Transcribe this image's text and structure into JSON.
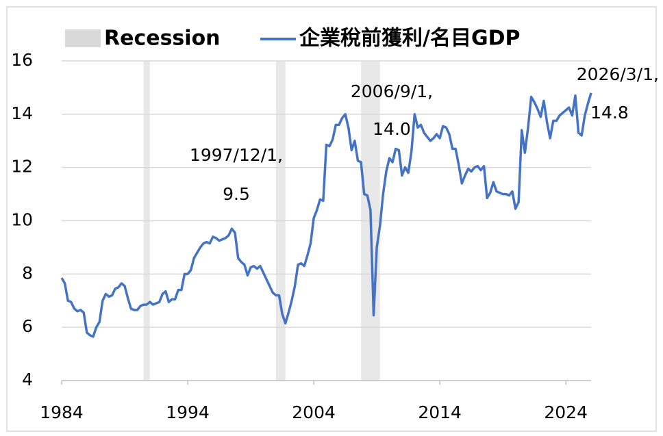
{
  "chart_data": {
    "type": "line",
    "recession": {
      "name": "Recession",
      "color": "#d9d9d9",
      "periods": [
        [
          1990.5,
          1991.0
        ],
        [
          2001.0,
          2001.75
        ],
        [
          2007.75,
          2009.25
        ]
      ]
    },
    "x": [
      1984,
      1984.25,
      1984.5,
      1984.75,
      1985,
      1985.25,
      1985.5,
      1985.75,
      1986,
      1986.25,
      1986.5,
      1986.75,
      1987,
      1987.25,
      1987.5,
      1987.75,
      1988,
      1988.25,
      1988.5,
      1988.75,
      1989,
      1989.25,
      1989.5,
      1989.75,
      1990,
      1990.25,
      1990.5,
      1990.75,
      1991,
      1991.25,
      1991.5,
      1991.75,
      1992,
      1992.25,
      1992.5,
      1992.75,
      1993,
      1993.25,
      1993.5,
      1993.75,
      1994,
      1994.25,
      1994.5,
      1994.75,
      1995,
      1995.25,
      1995.5,
      1995.75,
      1996,
      1996.25,
      1996.5,
      1996.75,
      1997,
      1997.25,
      1997.5,
      1997.75,
      1998,
      1998.25,
      1998.5,
      1998.75,
      1999,
      1999.25,
      1999.5,
      1999.75,
      2000,
      2000.25,
      2000.5,
      2000.75,
      2001,
      2001.25,
      2001.5,
      2001.75,
      2002,
      2002.25,
      2002.5,
      2002.75,
      2003,
      2003.25,
      2003.5,
      2003.75,
      2004,
      2004.25,
      2004.5,
      2004.75,
      2005,
      2005.25,
      2005.5,
      2005.75,
      2006,
      2006.25,
      2006.5,
      2006.75,
      2007,
      2007.25,
      2007.5,
      2007.75,
      2008,
      2008.25,
      2008.5,
      2008.75,
      2009,
      2009.25,
      2009.5,
      2009.75,
      2010,
      2010.25,
      2010.5,
      2010.75,
      2011,
      2011.25,
      2011.5,
      2011.75,
      2012,
      2012.25,
      2012.5,
      2012.75,
      2013,
      2013.25,
      2013.5,
      2013.75,
      2014,
      2014.25,
      2014.5,
      2014.75,
      2015,
      2015.25,
      2015.5,
      2015.75,
      2016,
      2016.25,
      2016.5,
      2016.75,
      2017,
      2017.25,
      2017.5,
      2017.75,
      2018,
      2018.25,
      2018.5,
      2018.75,
      2019,
      2019.25,
      2019.5,
      2019.75,
      2020,
      2020.25,
      2020.5,
      2020.75,
      2021,
      2021.25,
      2021.5,
      2021.75,
      2022,
      2022.25,
      2022.5,
      2022.75,
      2023,
      2023.25,
      2023.5,
      2023.75,
      2024,
      2024.25,
      2024.5,
      2024.75,
      2025,
      2025.25,
      2025.5,
      2025.75,
      2026
    ],
    "series": [
      {
        "name": "企業稅前獲利/名目GDP",
        "color": "#4472c4",
        "values": [
          7.85,
          7.65,
          7.0,
          6.95,
          6.7,
          6.6,
          6.65,
          6.55,
          5.8,
          5.7,
          5.65,
          6.0,
          6.2,
          7.0,
          7.25,
          7.15,
          7.2,
          7.45,
          7.5,
          7.65,
          7.55,
          7.1,
          6.7,
          6.65,
          6.65,
          6.8,
          6.85,
          6.85,
          6.95,
          6.85,
          6.9,
          6.95,
          7.25,
          7.35,
          6.95,
          7.05,
          7.05,
          7.4,
          7.4,
          8.0,
          8.0,
          8.15,
          8.6,
          8.8,
          9.0,
          9.15,
          9.2,
          9.15,
          9.4,
          9.35,
          9.25,
          9.3,
          9.35,
          9.45,
          9.7,
          9.55,
          8.6,
          8.45,
          8.35,
          7.95,
          8.25,
          8.3,
          8.2,
          8.3,
          8.05,
          7.8,
          7.55,
          7.3,
          7.2,
          7.2,
          6.5,
          6.15,
          6.55,
          7.0,
          7.55,
          8.35,
          8.4,
          8.3,
          8.7,
          9.15,
          10.1,
          10.4,
          10.8,
          10.75,
          12.85,
          12.8,
          13.05,
          13.6,
          13.6,
          13.85,
          14.0,
          13.5,
          12.65,
          13.0,
          12.25,
          12.2,
          11.0,
          10.95,
          10.4,
          6.45,
          9.0,
          9.8,
          11.0,
          11.85,
          12.35,
          12.2,
          12.7,
          12.65,
          11.7,
          12.0,
          11.8,
          12.6,
          14.0,
          13.5,
          13.6,
          13.3,
          13.15,
          13.0,
          13.1,
          13.25,
          13.1,
          13.55,
          13.5,
          13.25,
          12.7,
          12.7,
          12.1,
          11.4,
          11.7,
          11.95,
          11.85,
          12.0,
          12.05,
          11.9,
          12.05,
          10.85,
          11.05,
          11.45,
          11.1,
          11.05,
          11.0,
          11.0,
          10.95,
          11.1,
          10.45,
          10.7,
          13.4,
          12.55,
          13.5,
          14.65,
          14.45,
          14.2,
          13.9,
          14.5,
          13.7,
          13.1,
          13.75,
          13.75,
          13.95,
          14.05,
          14.15,
          14.25,
          13.95,
          14.7,
          13.3,
          13.2,
          13.95,
          14.4,
          14.8
        ]
      }
    ],
    "annotations": [
      {
        "text": "1997/12/1,",
        "value": 9.5,
        "label": "9.5"
      },
      {
        "text": "2006/9/1,",
        "value": 14,
        "label": "14.0"
      },
      {
        "text": "2026/3/1,",
        "value": 14.8,
        "label": "14.8"
      }
    ],
    "xlim": [
      1984,
      2026
    ],
    "xticks": [
      1984,
      1994,
      2004,
      2014,
      2024
    ],
    "ylim": [
      4,
      16
    ],
    "yticks": [
      4,
      6,
      8,
      10,
      12,
      14,
      16
    ],
    "grid": true
  }
}
